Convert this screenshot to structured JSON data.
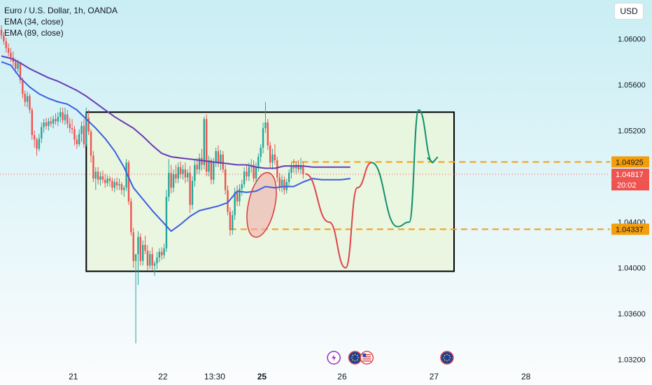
{
  "legend": {
    "symbol_line": "Euro / U.S. Dollar, 1h, OANDA",
    "ema_fast": "EMA (34, close)",
    "ema_slow": "EMA (89, close)"
  },
  "currency_button": "USD",
  "colors": {
    "bg_top": "#c9eef4",
    "bg_bottom": "#fbfcfd",
    "up": "#26a69a",
    "down": "#ef5350",
    "ema_fast": "#3b5fe0",
    "ema_slow": "#6a3ab5",
    "level": "#f59e0b",
    "last_price": "#ef5350",
    "range_fill": "#eaf6dc",
    "path_down": "#e0434c",
    "path_up": "#11906d"
  },
  "chart_data": {
    "type": "candlestick",
    "title": "Euro / U.S. Dollar, 1h, OANDA",
    "x_ticks": [
      "21",
      "22",
      "13:30",
      "25",
      "26",
      "27",
      "28"
    ],
    "y_ticks": [
      1.06,
      1.056,
      1.052,
      1.044,
      1.04,
      1.036,
      1.032
    ],
    "ylim": [
      1.0316,
      1.0634
    ],
    "price_labels": [
      {
        "value": 1.04925,
        "text": "1.04925",
        "style": "level"
      },
      {
        "value": 1.04817,
        "text": "1.04817",
        "style": "last"
      },
      {
        "value": 1.04337,
        "text": "1.04337",
        "style": "level"
      }
    ],
    "countdown": "20:02",
    "last_price": 1.04817,
    "levels": [
      {
        "name": "resistance",
        "value": 1.04925,
        "from_bar": 123
      },
      {
        "name": "support",
        "value": 1.04337,
        "from_bar": 97
      }
    ],
    "range_box": {
      "from_bar": 36,
      "to_bar": 192,
      "top": 1.0536,
      "bottom": 1.0397
    },
    "series": [
      {
        "name": "EMA (34, close)",
        "key": "ema_fast",
        "values": [
          1.058,
          1.0577,
          1.0566,
          1.0558,
          1.0552,
          1.0548,
          1.0545,
          1.0543,
          1.0538,
          1.053,
          1.0522,
          1.0513,
          1.0502,
          1.0488,
          1.047,
          1.046,
          1.045,
          1.0441,
          1.0432,
          1.0438,
          1.0445,
          1.045,
          1.0452,
          1.0454,
          1.0457,
          1.0467,
          1.0466,
          1.0467,
          1.0471,
          1.047,
          1.0471,
          1.0471,
          1.0475,
          1.0478,
          1.0477,
          1.0477,
          1.0477,
          1.0478
        ]
      },
      {
        "name": "EMA (89, close)",
        "key": "ema_slow",
        "values": [
          1.0585,
          1.0583,
          1.0579,
          1.0574,
          1.057,
          1.0566,
          1.0563,
          1.0559,
          1.0555,
          1.055,
          1.0544,
          1.0538,
          1.0532,
          1.0527,
          1.0522,
          1.0515,
          1.0507,
          1.05,
          1.0497,
          1.0496,
          1.0495,
          1.0494,
          1.0493,
          1.0492,
          1.0491,
          1.049,
          1.049,
          1.0488,
          1.0487,
          1.0487,
          1.0489,
          1.0489,
          1.0489,
          1.0488,
          1.0488,
          1.0488,
          1.0488,
          1.0488
        ]
      },
      {
        "name": "projection-down",
        "key": "path_down",
        "values": [
          1.0482,
          1.044,
          1.04,
          1.047,
          1.0492,
          1.048
        ]
      },
      {
        "name": "projection-up",
        "key": "path_up",
        "values": [
          1.048,
          1.0435,
          1.0468,
          1.054,
          1.0515,
          1.049
        ]
      }
    ],
    "candles": [
      [
        1.0608,
        1.0612,
        1.06,
        1.0603
      ],
      [
        1.0603,
        1.0606,
        1.0595,
        1.0598
      ],
      [
        1.0598,
        1.0601,
        1.0588,
        1.0592
      ],
      [
        1.0592,
        1.0596,
        1.0585,
        1.0588
      ],
      [
        1.0588,
        1.0592,
        1.058,
        1.0584
      ],
      [
        1.0584,
        1.0589,
        1.0576,
        1.058
      ],
      [
        1.058,
        1.0583,
        1.057,
        1.0574
      ],
      [
        1.0574,
        1.0582,
        1.0571,
        1.0579
      ],
      [
        1.0579,
        1.058,
        1.0561,
        1.0564
      ],
      [
        1.0564,
        1.0566,
        1.0548,
        1.0552
      ],
      [
        1.0552,
        1.0555,
        1.0541,
        1.0545
      ],
      [
        1.0545,
        1.0554,
        1.054,
        1.055
      ],
      [
        1.055,
        1.0552,
        1.0535,
        1.0538
      ],
      [
        1.0538,
        1.054,
        1.0512,
        1.0516
      ],
      [
        1.0516,
        1.052,
        1.0505,
        1.0512
      ],
      [
        1.0512,
        1.0514,
        1.0498,
        1.0504
      ],
      [
        1.0504,
        1.0517,
        1.0502,
        1.0513
      ],
      [
        1.0513,
        1.0527,
        1.0509,
        1.0523
      ],
      [
        1.0523,
        1.053,
        1.0518,
        1.0527
      ],
      [
        1.0527,
        1.0531,
        1.0521,
        1.0524
      ],
      [
        1.0524,
        1.0531,
        1.052,
        1.0528
      ],
      [
        1.0528,
        1.0532,
        1.0523,
        1.0526
      ],
      [
        1.0526,
        1.0533,
        1.0522,
        1.053
      ],
      [
        1.053,
        1.0535,
        1.0525,
        1.0528
      ],
      [
        1.0528,
        1.0536,
        1.0524,
        1.0532
      ],
      [
        1.0532,
        1.054,
        1.0527,
        1.0536
      ],
      [
        1.0536,
        1.054,
        1.0526,
        1.0529
      ],
      [
        1.0529,
        1.054,
        1.0525,
        1.0534
      ],
      [
        1.0534,
        1.0538,
        1.0522,
        1.0526
      ],
      [
        1.0526,
        1.0531,
        1.0518,
        1.0522
      ],
      [
        1.0522,
        1.053,
        1.0517,
        1.0521
      ],
      [
        1.0521,
        1.0524,
        1.0507,
        1.0512
      ],
      [
        1.0512,
        1.0516,
        1.0504,
        1.0508
      ],
      [
        1.0508,
        1.0521,
        1.0506,
        1.0517
      ],
      [
        1.0517,
        1.0528,
        1.051,
        1.0524
      ],
      [
        1.0524,
        1.053,
        1.0505,
        1.0508
      ],
      [
        1.0508,
        1.054,
        1.0506,
        1.0531
      ],
      [
        1.0531,
        1.0538,
        1.0516,
        1.0519
      ],
      [
        1.0519,
        1.0521,
        1.0492,
        1.0498
      ],
      [
        1.0498,
        1.0502,
        1.0475,
        1.0478
      ],
      [
        1.0478,
        1.0488,
        1.0468,
        1.0484
      ],
      [
        1.0484,
        1.0488,
        1.0473,
        1.0477
      ],
      [
        1.0477,
        1.0484,
        1.0472,
        1.048
      ],
      [
        1.048,
        1.0485,
        1.0474,
        1.0477
      ],
      [
        1.0477,
        1.0482,
        1.047,
        1.0474
      ],
      [
        1.0474,
        1.0481,
        1.0471,
        1.0478
      ],
      [
        1.0478,
        1.048,
        1.0471,
        1.0476
      ],
      [
        1.0476,
        1.0479,
        1.0467,
        1.047
      ],
      [
        1.047,
        1.0478,
        1.0466,
        1.0475
      ],
      [
        1.0475,
        1.0479,
        1.0468,
        1.0472
      ],
      [
        1.0472,
        1.0478,
        1.0468,
        1.0473
      ],
      [
        1.0473,
        1.0475,
        1.0464,
        1.0468
      ],
      [
        1.0468,
        1.0472,
        1.0462,
        1.047
      ],
      [
        1.047,
        1.0495,
        1.0467,
        1.0492
      ],
      [
        1.0492,
        1.0494,
        1.0455,
        1.0458
      ],
      [
        1.0458,
        1.0461,
        1.0428,
        1.0431
      ],
      [
        1.0431,
        1.0435,
        1.04,
        1.0406
      ],
      [
        1.0406,
        1.041,
        1.0334,
        1.0412
      ],
      [
        1.0412,
        1.0432,
        1.0385,
        1.0427
      ],
      [
        1.0427,
        1.043,
        1.0402,
        1.0406
      ],
      [
        1.0406,
        1.0424,
        1.0402,
        1.042
      ],
      [
        1.042,
        1.0428,
        1.0412,
        1.0415
      ],
      [
        1.0415,
        1.042,
        1.0398,
        1.0402
      ],
      [
        1.0402,
        1.0415,
        1.0399,
        1.0412
      ],
      [
        1.0412,
        1.0418,
        1.0398,
        1.0402
      ],
      [
        1.0402,
        1.0406,
        1.0393,
        1.0404
      ],
      [
        1.0404,
        1.0414,
        1.0399,
        1.0409
      ],
      [
        1.0409,
        1.0417,
        1.0405,
        1.0414
      ],
      [
        1.0414,
        1.0418,
        1.0407,
        1.0411
      ],
      [
        1.0411,
        1.0421,
        1.0408,
        1.0417
      ],
      [
        1.0417,
        1.0468,
        1.0414,
        1.0462
      ],
      [
        1.0462,
        1.0495,
        1.0458,
        1.0483
      ],
      [
        1.0483,
        1.049,
        1.0465,
        1.047
      ],
      [
        1.047,
        1.0486,
        1.0466,
        1.0482
      ],
      [
        1.0482,
        1.049,
        1.0474,
        1.0478
      ],
      [
        1.0478,
        1.0492,
        1.0474,
        1.0488
      ],
      [
        1.0488,
        1.0493,
        1.0478,
        1.0482
      ],
      [
        1.0482,
        1.049,
        1.0477,
        1.0486
      ],
      [
        1.0486,
        1.0492,
        1.0474,
        1.0479
      ],
      [
        1.0479,
        1.0486,
        1.0475,
        1.0483
      ],
      [
        1.0483,
        1.0489,
        1.0448,
        1.0455
      ],
      [
        1.0455,
        1.048,
        1.0451,
        1.0476
      ],
      [
        1.0476,
        1.0494,
        1.0471,
        1.049
      ],
      [
        1.049,
        1.0496,
        1.0482,
        1.0486
      ],
      [
        1.0486,
        1.05,
        1.0482,
        1.0496
      ],
      [
        1.0496,
        1.0504,
        1.0485,
        1.049
      ],
      [
        1.049,
        1.0532,
        1.0486,
        1.053
      ],
      [
        1.053,
        1.0534,
        1.048,
        1.0484
      ],
      [
        1.0484,
        1.0498,
        1.048,
        1.0494
      ],
      [
        1.0494,
        1.0496,
        1.0473,
        1.0477
      ],
      [
        1.0477,
        1.0496,
        1.0473,
        1.0492
      ],
      [
        1.0492,
        1.0505,
        1.0488,
        1.0502
      ],
      [
        1.0502,
        1.0507,
        1.0488,
        1.0491
      ],
      [
        1.0491,
        1.0503,
        1.0485,
        1.0499
      ],
      [
        1.0499,
        1.0502,
        1.0483,
        1.0486
      ],
      [
        1.0486,
        1.049,
        1.0464,
        1.0468
      ],
      [
        1.0468,
        1.0472,
        1.0446,
        1.0449
      ],
      [
        1.0449,
        1.0453,
        1.0428,
        1.0433
      ],
      [
        1.0433,
        1.045,
        1.0429,
        1.0446
      ],
      [
        1.0446,
        1.047,
        1.0442,
        1.0466
      ],
      [
        1.0466,
        1.0472,
        1.0454,
        1.0458
      ],
      [
        1.0458,
        1.0473,
        1.0454,
        1.0469
      ],
      [
        1.0469,
        1.0477,
        1.0463,
        1.0473
      ],
      [
        1.0473,
        1.0488,
        1.047,
        1.0484
      ],
      [
        1.0484,
        1.049,
        1.0476,
        1.048
      ],
      [
        1.048,
        1.0492,
        1.0476,
        1.0488
      ],
      [
        1.0488,
        1.0495,
        1.0483,
        1.049
      ],
      [
        1.049,
        1.0494,
        1.0475,
        1.0478
      ],
      [
        1.0478,
        1.0492,
        1.0474,
        1.0488
      ],
      [
        1.0488,
        1.05,
        1.0484,
        1.0497
      ],
      [
        1.0497,
        1.0508,
        1.0492,
        1.0505
      ],
      [
        1.0505,
        1.0527,
        1.05,
        1.0522
      ],
      [
        1.0522,
        1.0545,
        1.0518,
        1.0527
      ],
      [
        1.0527,
        1.053,
        1.0503,
        1.0507
      ],
      [
        1.0507,
        1.051,
        1.0488,
        1.0492
      ],
      [
        1.0492,
        1.0504,
        1.0486,
        1.0499
      ],
      [
        1.0499,
        1.0508,
        1.049,
        1.0494
      ],
      [
        1.0494,
        1.0497,
        1.0475,
        1.0479
      ],
      [
        1.0479,
        1.0483,
        1.0467,
        1.0471
      ],
      [
        1.0471,
        1.0481,
        1.0466,
        1.0477
      ],
      [
        1.0477,
        1.048,
        1.0464,
        1.0468
      ],
      [
        1.0468,
        1.0478,
        1.0465,
        1.0475
      ],
      [
        1.0475,
        1.0486,
        1.0471,
        1.0483
      ],
      [
        1.0483,
        1.0492,
        1.0478,
        1.0489
      ],
      [
        1.0489,
        1.0495,
        1.0483,
        1.0487
      ],
      [
        1.0487,
        1.0492,
        1.0482,
        1.049
      ],
      [
        1.049,
        1.0494,
        1.0483,
        1.0486
      ],
      [
        1.0486,
        1.0496,
        1.0482,
        1.0489
      ],
      [
        1.0489,
        1.0493,
        1.0478,
        1.0482
      ]
    ],
    "event_icons": [
      {
        "name": "lightning-event-icon",
        "bar": 141,
        "kind": "lightning"
      },
      {
        "name": "eu-event-icon",
        "bar": 150,
        "kind": "eu"
      },
      {
        "name": "us-event-icon",
        "bar": 155,
        "kind": "us"
      },
      {
        "name": "eu-event-icon-2",
        "bar": 189,
        "kind": "eu"
      }
    ]
  }
}
